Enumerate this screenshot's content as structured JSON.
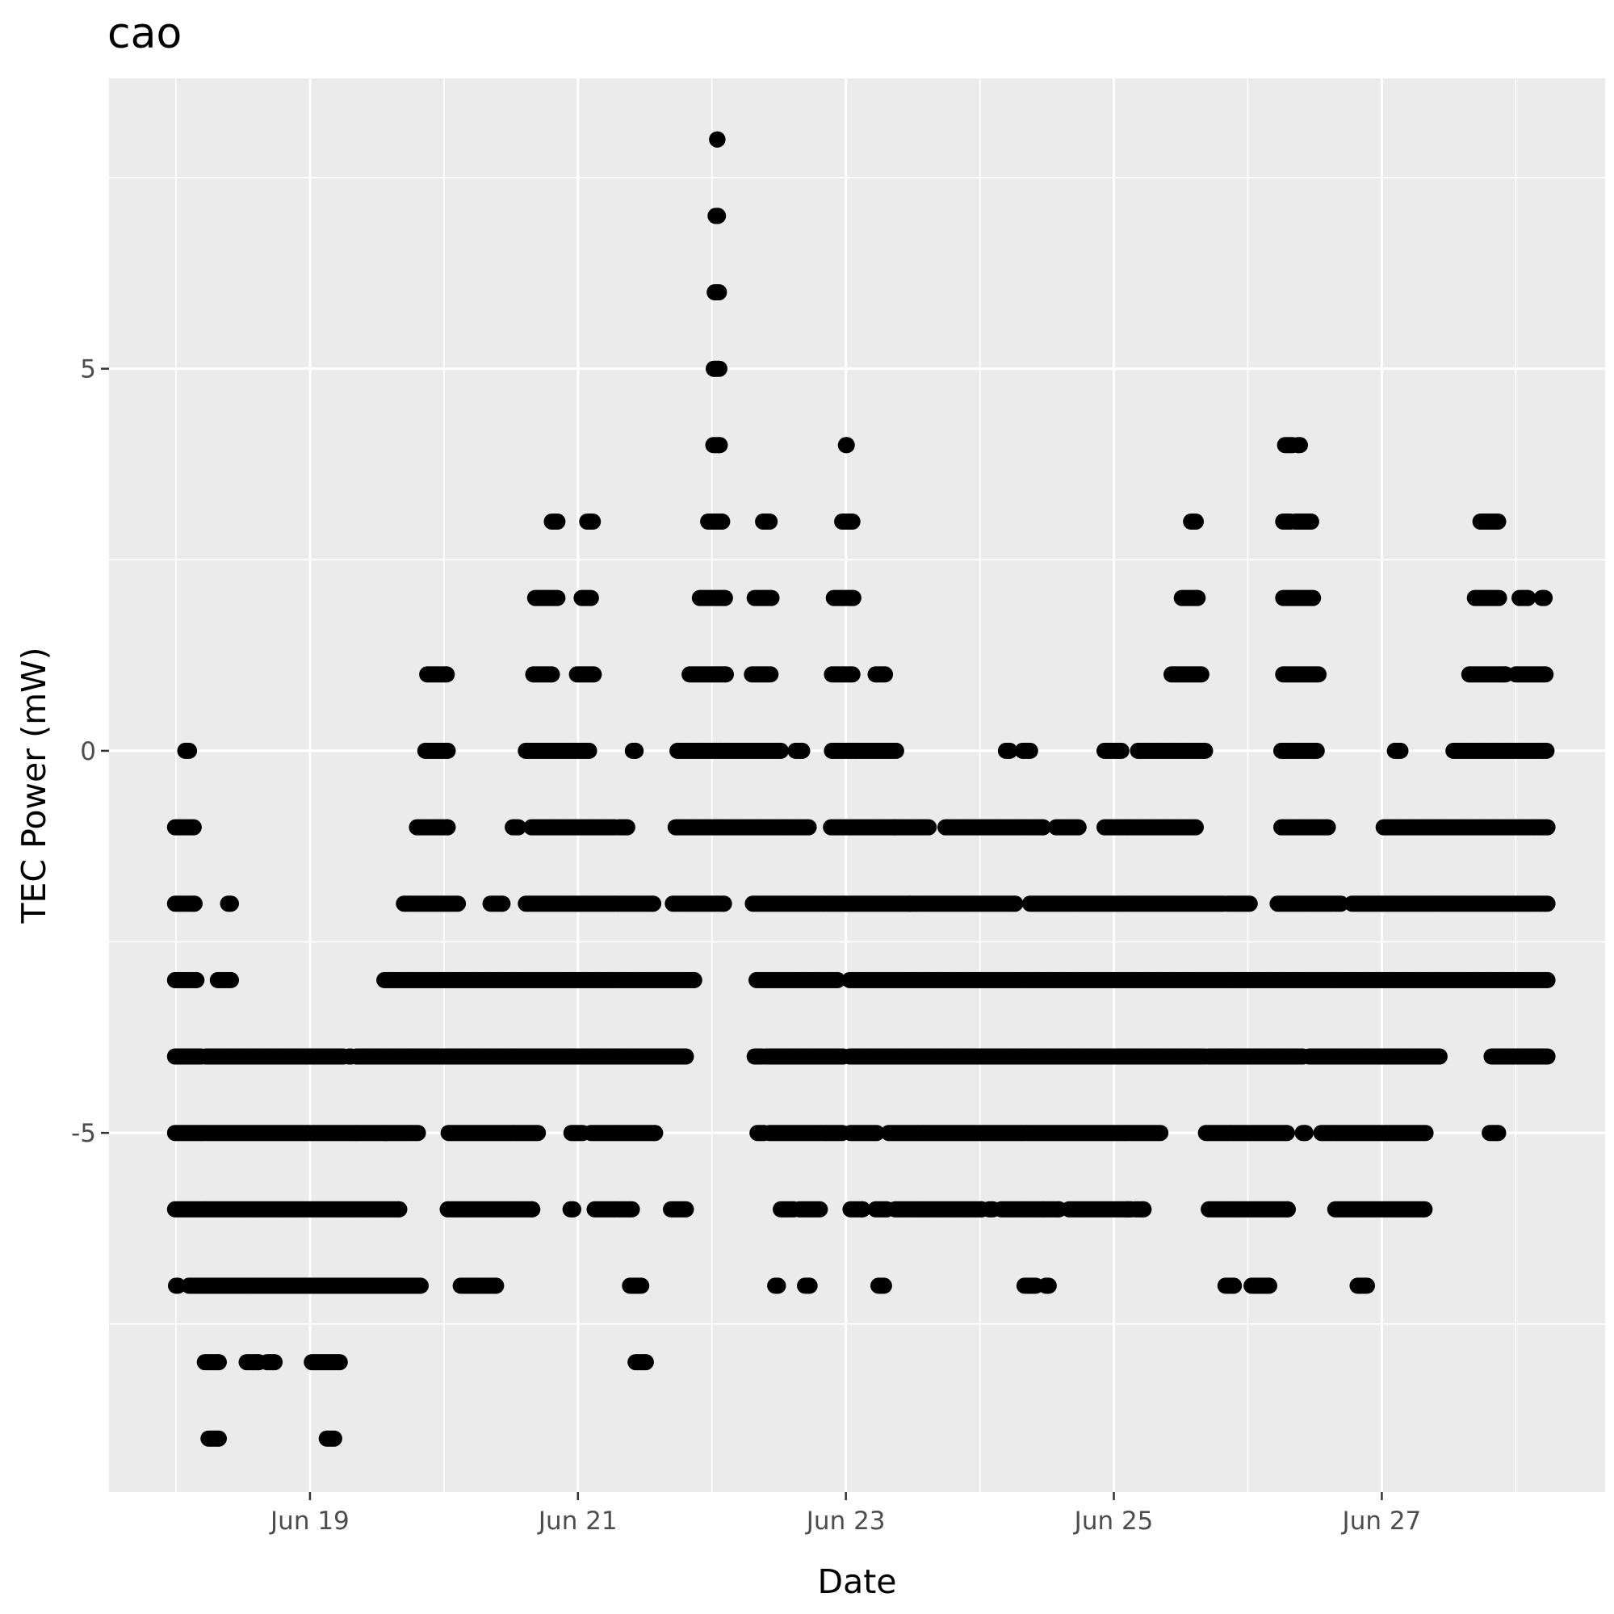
{
  "chart_data": {
    "type": "scatter",
    "title": "cao",
    "xlabel": "Date",
    "ylabel": "TEC Power (mW)",
    "x_type": "date",
    "x_ticks": [
      "2023-06-19",
      "2023-06-21",
      "2023-06-23",
      "2023-06-25",
      "2023-06-27"
    ],
    "x_tick_labels": [
      "Jun 19",
      "Jun 21",
      "Jun 23",
      "Jun 25",
      "Jun 27"
    ],
    "y_ticks": [
      -5,
      0,
      5
    ],
    "y_tick_labels": [
      "-5",
      "0",
      "5"
    ],
    "xlim": [
      "2023-06-17T12:00",
      "2023-06-28T16:00"
    ],
    "ylim": [
      -9.7,
      8.8
    ],
    "grid": true,
    "point_color": "#000000",
    "series": [
      {
        "segments": [
          {
            "y": 8,
            "x": [
              [
                "2023-06-22T00:55",
                "2023-06-22T01:00"
              ]
            ]
          },
          {
            "y": 7,
            "x": [
              [
                "2023-06-22T00:40",
                "2023-06-22T01:05"
              ]
            ]
          },
          {
            "y": 6,
            "x": [
              [
                "2023-06-22T00:30",
                "2023-06-22T01:15"
              ]
            ]
          },
          {
            "y": 5,
            "x": [
              [
                "2023-06-22T00:20",
                "2023-06-22T01:20"
              ]
            ]
          },
          {
            "y": 4,
            "x": [
              [
                "2023-06-22T00:15",
                "2023-06-22T01:25"
              ],
              [
                "2023-06-23T00:00",
                "2023-06-23T00:10"
              ],
              [
                "2023-06-26T06:40",
                "2023-06-26T08:00"
              ],
              [
                "2023-06-26T09:00",
                "2023-06-26T09:20"
              ]
            ]
          },
          {
            "y": 3,
            "x": [
              [
                "2023-06-20T19:20",
                "2023-06-20T20:20"
              ],
              [
                "2023-06-21T01:40",
                "2023-06-21T02:40"
              ],
              [
                "2023-06-21T23:20",
                "2023-06-22T01:50"
              ],
              [
                "2023-06-22T09:10",
                "2023-06-22T10:20"
              ],
              [
                "2023-06-22T23:20",
                "2023-06-23T01:10"
              ],
              [
                "2023-06-25T13:50",
                "2023-06-25T14:40"
              ],
              [
                "2023-06-26T06:20",
                "2023-06-26T07:40"
              ],
              [
                "2023-06-26T08:30",
                "2023-06-26T11:20"
              ],
              [
                "2023-06-27T17:40",
                "2023-06-27T20:50"
              ]
            ]
          },
          {
            "y": 2,
            "x": [
              [
                "2023-06-20T16:20",
                "2023-06-20T20:20"
              ],
              [
                "2023-06-21T00:40",
                "2023-06-21T02:20"
              ],
              [
                "2023-06-21T21:50",
                "2023-06-22T02:20"
              ],
              [
                "2023-06-22T07:40",
                "2023-06-22T10:40"
              ],
              [
                "2023-06-22T21:50",
                "2023-06-23T01:20"
              ],
              [
                "2023-06-25T12:10",
                "2023-06-25T15:00"
              ],
              [
                "2023-06-26T06:20",
                "2023-06-26T11:40"
              ],
              [
                "2023-06-27T16:40",
                "2023-06-27T21:00"
              ],
              [
                "2023-06-28T00:40",
                "2023-06-28T02:10"
              ],
              [
                "2023-06-28T04:40",
                "2023-06-28T05:10"
              ]
            ]
          },
          {
            "y": 1,
            "x": [
              [
                "2023-06-19T21:00",
                "2023-06-20T00:30"
              ],
              [
                "2023-06-20T16:00",
                "2023-06-20T19:20"
              ],
              [
                "2023-06-20T23:50",
                "2023-06-21T02:50"
              ],
              [
                "2023-06-21T20:00",
                "2023-06-22T02:30"
              ],
              [
                "2023-06-22T07:10",
                "2023-06-22T10:30"
              ],
              [
                "2023-06-22T21:30",
                "2023-06-23T01:10"
              ],
              [
                "2023-06-23T05:20",
                "2023-06-23T07:00"
              ],
              [
                "2023-06-25T10:20",
                "2023-06-25T15:40"
              ],
              [
                "2023-06-26T06:20",
                "2023-06-26T12:40"
              ],
              [
                "2023-06-27T15:40",
                "2023-06-27T22:10"
              ],
              [
                "2023-06-28T00:00",
                "2023-06-28T05:20"
              ]
            ]
          },
          {
            "y": 0,
            "x": [
              [
                "2023-06-18T01:40",
                "2023-06-18T02:20"
              ],
              [
                "2023-06-19T20:40",
                "2023-06-20T00:40"
              ],
              [
                "2023-06-20T14:40",
                "2023-06-21T02:00"
              ],
              [
                "2023-06-21T09:50",
                "2023-06-21T10:20"
              ],
              [
                "2023-06-21T17:50",
                "2023-06-22T12:20"
              ],
              [
                "2023-06-22T15:00",
                "2023-06-22T16:10"
              ],
              [
                "2023-06-22T21:30",
                "2023-06-23T02:00"
              ],
              [
                "2023-06-23T02:20",
                "2023-06-23T09:00"
              ],
              [
                "2023-06-24T04:40",
                "2023-06-24T05:20"
              ],
              [
                "2023-06-24T07:40",
                "2023-06-24T09:00"
              ],
              [
                "2023-06-24T22:20",
                "2023-06-25T01:20"
              ],
              [
                "2023-06-25T04:20",
                "2023-06-25T16:20"
              ],
              [
                "2023-06-26T06:00",
                "2023-06-26T12:20"
              ],
              [
                "2023-06-27T02:20",
                "2023-06-27T03:20"
              ],
              [
                "2023-06-27T12:50",
                "2023-06-28T05:30"
              ]
            ]
          },
          {
            "y": -1,
            "x": [
              [
                "2023-06-17T23:50",
                "2023-06-18T03:10"
              ],
              [
                "2023-06-19T19:10",
                "2023-06-20T00:40"
              ],
              [
                "2023-06-20T12:20",
                "2023-06-20T13:20"
              ],
              [
                "2023-06-20T15:40",
                "2023-06-21T05:00"
              ],
              [
                "2023-06-21T05:20",
                "2023-06-21T06:40"
              ],
              [
                "2023-06-21T07:20",
                "2023-06-21T08:50"
              ],
              [
                "2023-06-21T17:30",
                "2023-06-22T12:50"
              ],
              [
                "2023-06-22T13:00",
                "2023-06-22T17:20"
              ],
              [
                "2023-06-22T21:20",
                "2023-06-23T08:50"
              ],
              [
                "2023-06-23T08:50",
                "2023-06-23T14:50"
              ],
              [
                "2023-06-23T17:50",
                "2023-06-24T11:20"
              ],
              [
                "2023-06-24T13:40",
                "2023-06-24T17:40"
              ],
              [
                "2023-06-24T22:20",
                "2023-06-25T14:40"
              ],
              [
                "2023-06-26T06:00",
                "2023-06-26T14:20"
              ],
              [
                "2023-06-27T00:20",
                "2023-06-28T05:40"
              ]
            ]
          },
          {
            "y": -2,
            "x": [
              [
                "2023-06-17T23:50",
                "2023-06-18T03:20"
              ],
              [
                "2023-06-18T09:20",
                "2023-06-18T09:50"
              ],
              [
                "2023-06-19T16:50",
                "2023-06-20T02:30"
              ],
              [
                "2023-06-20T08:20",
                "2023-06-20T10:30"
              ],
              [
                "2023-06-20T14:40",
                "2023-06-21T13:30"
              ],
              [
                "2023-06-21T17:00",
                "2023-06-22T02:10"
              ],
              [
                "2023-06-22T07:20",
                "2023-06-23T11:30"
              ],
              [
                "2023-06-23T11:30",
                "2023-06-24T06:20"
              ],
              [
                "2023-06-24T09:00",
                "2023-06-25T19:40"
              ],
              [
                "2023-06-25T20:20",
                "2023-06-26T00:20"
              ],
              [
                "2023-06-26T05:20",
                "2023-06-26T16:40"
              ],
              [
                "2023-06-26T18:40",
                "2023-06-28T05:40"
              ]
            ]
          },
          {
            "y": -3,
            "x": [
              [
                "2023-06-17T23:50",
                "2023-06-18T03:40"
              ],
              [
                "2023-06-18T07:30",
                "2023-06-18T09:50"
              ],
              [
                "2023-06-19T13:20",
                "2023-06-21T20:50"
              ],
              [
                "2023-06-22T08:00",
                "2023-06-22T22:30"
              ],
              [
                "2023-06-23T00:40",
                "2023-06-28T05:40"
              ]
            ]
          },
          {
            "y": -4,
            "x": [
              [
                "2023-06-17T23:50",
                "2023-06-18T04:30"
              ],
              [
                "2023-06-18T05:20",
                "2023-06-19T06:00"
              ],
              [
                "2023-06-19T07:00",
                "2023-06-19T07:20"
              ],
              [
                "2023-06-19T08:20",
                "2023-06-20T23:00"
              ],
              [
                "2023-06-20T22:40",
                "2023-06-21T01:00"
              ],
              [
                "2023-06-21T01:20",
                "2023-06-21T19:20"
              ],
              [
                "2023-06-22T07:40",
                "2023-06-22T09:00"
              ],
              [
                "2023-06-22T09:40",
                "2023-06-22T23:30"
              ],
              [
                "2023-06-23T00:40",
                "2023-06-25T16:20"
              ],
              [
                "2023-06-25T17:00",
                "2023-06-26T09:50"
              ],
              [
                "2023-06-26T11:00",
                "2023-06-27T10:20"
              ],
              [
                "2023-06-27T19:40",
                "2023-06-28T05:40"
              ]
            ]
          },
          {
            "y": -5,
            "x": [
              [
                "2023-06-17T23:50",
                "2023-06-19T08:10"
              ],
              [
                "2023-06-19T08:20",
                "2023-06-19T13:30"
              ],
              [
                "2023-06-19T13:40",
                "2023-06-19T19:20"
              ],
              [
                "2023-06-20T00:50",
                "2023-06-20T16:50"
              ],
              [
                "2023-06-20T22:50",
                "2023-06-21T00:50"
              ],
              [
                "2023-06-21T02:20",
                "2023-06-21T13:50"
              ],
              [
                "2023-06-22T08:10",
                "2023-06-22T09:20"
              ],
              [
                "2023-06-22T10:20",
                "2023-06-22T23:20"
              ],
              [
                "2023-06-23T00:50",
                "2023-06-23T05:30"
              ],
              [
                "2023-06-23T07:40",
                "2023-06-25T08:20"
              ],
              [
                "2023-06-25T16:30",
                "2023-06-26T07:00"
              ],
              [
                "2023-06-26T09:50",
                "2023-06-26T10:20"
              ],
              [
                "2023-06-26T13:10",
                "2023-06-27T07:50"
              ],
              [
                "2023-06-27T19:20",
                "2023-06-27T20:50"
              ]
            ]
          },
          {
            "y": -6,
            "x": [
              [
                "2023-06-17T23:50",
                "2023-06-19T16:00"
              ],
              [
                "2023-06-20T00:40",
                "2023-06-20T15:50"
              ],
              [
                "2023-06-20T22:40",
                "2023-06-20T23:10"
              ],
              [
                "2023-06-21T03:00",
                "2023-06-21T09:40"
              ],
              [
                "2023-06-21T16:40",
                "2023-06-21T19:20"
              ],
              [
                "2023-06-22T12:20",
                "2023-06-22T14:40"
              ],
              [
                "2023-06-22T15:40",
                "2023-06-22T19:20"
              ],
              [
                "2023-06-23T00:50",
                "2023-06-23T03:00"
              ],
              [
                "2023-06-23T05:20",
                "2023-06-23T07:20"
              ],
              [
                "2023-06-23T08:50",
                "2023-06-24T00:20"
              ],
              [
                "2023-06-24T01:40",
                "2023-06-24T02:20"
              ],
              [
                "2023-06-24T03:50",
                "2023-06-24T11:20"
              ],
              [
                "2023-06-24T11:40",
                "2023-06-24T14:10"
              ],
              [
                "2023-06-24T16:00",
                "2023-06-25T02:40"
              ],
              [
                "2023-06-25T02:20",
                "2023-06-25T03:10"
              ],
              [
                "2023-06-25T03:50",
                "2023-06-25T05:20"
              ],
              [
                "2023-06-25T17:00",
                "2023-06-26T07:10"
              ],
              [
                "2023-06-26T15:40",
                "2023-06-27T07:40"
              ]
            ]
          },
          {
            "y": -7,
            "x": [
              [
                "2023-06-18T00:00",
                "2023-06-18T00:20"
              ],
              [
                "2023-06-18T02:20",
                "2023-06-19T19:50"
              ],
              [
                "2023-06-20T03:00",
                "2023-06-20T06:50"
              ],
              [
                "2023-06-20T07:10",
                "2023-06-20T09:20"
              ],
              [
                "2023-06-21T09:20",
                "2023-06-21T11:20"
              ],
              [
                "2023-06-22T11:20",
                "2023-06-22T11:50"
              ],
              [
                "2023-06-22T16:40",
                "2023-06-22T17:30"
              ],
              [
                "2023-06-23T05:50",
                "2023-06-23T06:50"
              ],
              [
                "2023-06-24T08:00",
                "2023-06-24T10:00"
              ],
              [
                "2023-06-24T11:50",
                "2023-06-24T12:20"
              ],
              [
                "2023-06-25T20:00",
                "2023-06-25T21:30"
              ],
              [
                "2023-06-26T00:40",
                "2023-06-26T03:50"
              ],
              [
                "2023-06-26T19:40",
                "2023-06-26T21:20"
              ]
            ]
          },
          {
            "y": -8,
            "x": [
              [
                "2023-06-18T05:10",
                "2023-06-18T07:40"
              ],
              [
                "2023-06-18T12:40",
                "2023-06-18T14:50"
              ],
              [
                "2023-06-18T16:20",
                "2023-06-18T17:40"
              ],
              [
                "2023-06-19T00:20",
                "2023-06-19T05:20"
              ],
              [
                "2023-06-21T10:20",
                "2023-06-21T12:10"
              ]
            ]
          },
          {
            "y": -9,
            "x": [
              [
                "2023-06-18T05:50",
                "2023-06-18T07:40"
              ],
              [
                "2023-06-19T03:00",
                "2023-06-19T04:20"
              ]
            ]
          }
        ]
      }
    ]
  }
}
